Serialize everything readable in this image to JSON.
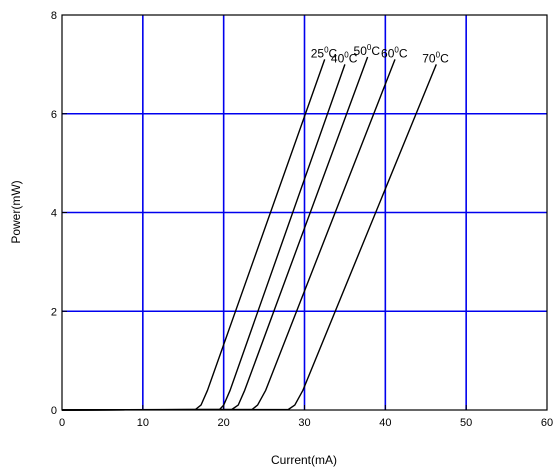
{
  "chart_data": {
    "type": "line",
    "xlabel": "Current(mA)",
    "ylabel": "Power(mW)",
    "xlim": [
      0,
      60
    ],
    "ylim": [
      0,
      8
    ],
    "x_ticks": [
      "0",
      "10",
      "20",
      "30",
      "40",
      "50",
      "60"
    ],
    "y_ticks": [
      "0",
      "2",
      "4",
      "6",
      "8"
    ],
    "grid": true,
    "grid_color": "#0000ee",
    "line_color": "#000000",
    "series": [
      {
        "name": "25°C",
        "label_base": "25",
        "label_sup": "0",
        "label_tail": "C",
        "x": [
          0,
          16.5,
          17.2,
          18.0,
          32.5
        ],
        "y": [
          0.0,
          0.01,
          0.1,
          0.4,
          7.1
        ]
      },
      {
        "name": "40°C",
        "label_base": "40",
        "label_sup": "0",
        "label_tail": "C",
        "x": [
          0,
          19.5,
          20.0,
          20.8,
          35.0
        ],
        "y": [
          0.0,
          0.01,
          0.1,
          0.4,
          7.0
        ]
      },
      {
        "name": "50°C",
        "label_base": "50",
        "label_sup": "0",
        "label_tail": "C",
        "x": [
          0,
          21.0,
          21.8,
          22.6,
          37.8
        ],
        "y": [
          0.0,
          0.01,
          0.1,
          0.4,
          7.15
        ]
      },
      {
        "name": "60°C",
        "label_base": "60",
        "label_sup": "0",
        "label_tail": "C",
        "x": [
          0,
          23.5,
          24.2,
          25.2,
          41.2
        ],
        "y": [
          0.0,
          0.01,
          0.1,
          0.4,
          7.1
        ]
      },
      {
        "name": "70°C",
        "label_base": "70",
        "label_sup": "0",
        "label_tail": "C",
        "x": [
          0,
          28.0,
          28.8,
          29.8,
          46.3
        ],
        "y": [
          0.0,
          0.01,
          0.1,
          0.4,
          7.0
        ]
      }
    ]
  }
}
